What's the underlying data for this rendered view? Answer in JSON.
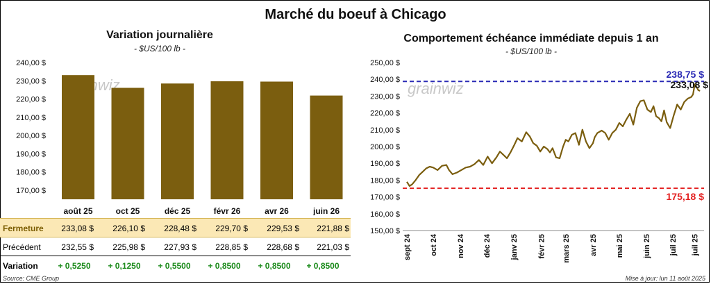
{
  "title": "Marché du boeuf à Chicago",
  "left": {
    "title": "Variation journalière",
    "subtitle": "- $US/100 lb -"
  },
  "right": {
    "title": "Comportement échéance immédiate depuis 1 an",
    "subtitle": "- $US/100 lb -"
  },
  "table": {
    "row_labels": [
      "Fermeture",
      "Précédent",
      "Variation"
    ],
    "closing": [
      "233,08 $",
      "226,10 $",
      "228,48 $",
      "229,70 $",
      "229,53 $",
      "221,88 $"
    ],
    "previous": [
      "232,55 $",
      "225,98 $",
      "227,93 $",
      "228,85 $",
      "228,68 $",
      "221,03 $"
    ],
    "variation": [
      "+ 0,5250",
      "+ 0,1250",
      "+ 0,5500",
      "+ 0,8500",
      "+ 0,8500",
      "+ 0,8500"
    ]
  },
  "source": "Source: CME Group",
  "updated": "Mise à jour: lun 11 août 2025",
  "watermark": "grainwiz",
  "colors": {
    "bar": "#7b5e0f",
    "line": "#7b5e0f",
    "high": "#2a2ab5",
    "low": "#e32020"
  },
  "chart_data": [
    {
      "type": "bar",
      "categories": [
        "août 25",
        "oct 25",
        "déc 25",
        "févr 26",
        "avr 26",
        "juin 26"
      ],
      "values": [
        233.08,
        226.1,
        228.48,
        229.7,
        229.53,
        221.88
      ],
      "ylim": [
        165,
        240
      ],
      "yticks": [
        "170,00 $",
        "180,00 $",
        "190,00 $",
        "200,00 $",
        "210,00 $",
        "220,00 $",
        "230,00 $",
        "240,00 $"
      ],
      "ytick_values": [
        170,
        180,
        190,
        200,
        210,
        220,
        230,
        240
      ],
      "grid": false
    },
    {
      "type": "line",
      "ylim": [
        150,
        250
      ],
      "yticks": [
        "150,00 $",
        "160,00 $",
        "170,00 $",
        "180,00 $",
        "190,00 $",
        "200,00 $",
        "210,00 $",
        "220,00 $",
        "230,00 $",
        "240,00 $",
        "250,00 $"
      ],
      "ytick_values": [
        150,
        160,
        170,
        180,
        190,
        200,
        210,
        220,
        230,
        240,
        250
      ],
      "xticks": [
        "sept 24",
        "oct 24",
        "nov 24",
        "déc 24",
        "janv 25",
        "févr 25",
        "mars 25",
        "avr 25",
        "mai 25",
        "juin 25",
        "juil 25",
        "juil 25"
      ],
      "xtick_days": [
        0,
        30,
        61,
        91,
        122,
        153,
        181,
        212,
        242,
        273,
        303,
        328
      ],
      "x_days": [
        0,
        3,
        6,
        10,
        14,
        18,
        22,
        26,
        30,
        35,
        40,
        45,
        48,
        52,
        57,
        62,
        67,
        72,
        77,
        82,
        87,
        92,
        97,
        102,
        106,
        110,
        114,
        118,
        122,
        126,
        131,
        136,
        140,
        144,
        148,
        152,
        156,
        160,
        163,
        166,
        170,
        174,
        178,
        181,
        184,
        188,
        192,
        196,
        200,
        204,
        208,
        212,
        214,
        217,
        222,
        226,
        230,
        234,
        238,
        242,
        246,
        250,
        254,
        258,
        262,
        266,
        270,
        274,
        278,
        281,
        284,
        287,
        290,
        293,
        296,
        300,
        304,
        308,
        312,
        316,
        320,
        324,
        326,
        328,
        330,
        332,
        334
      ],
      "values": [
        179.0,
        176.5,
        177.5,
        180.0,
        183.0,
        185.0,
        187.0,
        188.0,
        187.5,
        186.0,
        188.5,
        189.0,
        186.0,
        183.5,
        184.5,
        186.0,
        187.5,
        188.0,
        189.5,
        192.0,
        189.0,
        194.0,
        190.0,
        193.5,
        197.0,
        195.0,
        193.0,
        196.5,
        200.5,
        205.0,
        203.0,
        208.5,
        206.0,
        202.0,
        200.5,
        197.0,
        200.0,
        198.5,
        196.5,
        199.0,
        193.5,
        193.0,
        200.0,
        204.0,
        203.0,
        207.0,
        208.0,
        201.0,
        210.0,
        203.0,
        199.0,
        202.0,
        205.5,
        208.0,
        209.5,
        208.0,
        204.0,
        208.0,
        210.0,
        214.0,
        212.0,
        216.0,
        219.5,
        213.0,
        223.0,
        227.0,
        227.5,
        222.0,
        220.5,
        224.0,
        218.0,
        217.0,
        215.0,
        221.5,
        214.5,
        211.0,
        218.5,
        225.0,
        222.0,
        226.5,
        228.5,
        229.5,
        231.0,
        237.0,
        235.5,
        233.5,
        233.08
      ],
      "reference_lines": [
        {
          "label": "238,75 $",
          "value": 238.75,
          "color": "#2a2ab5"
        },
        {
          "label": "175,18 $",
          "value": 175.18,
          "color": "#e32020"
        }
      ],
      "last_label": "233,08 $",
      "grid": false
    }
  ]
}
